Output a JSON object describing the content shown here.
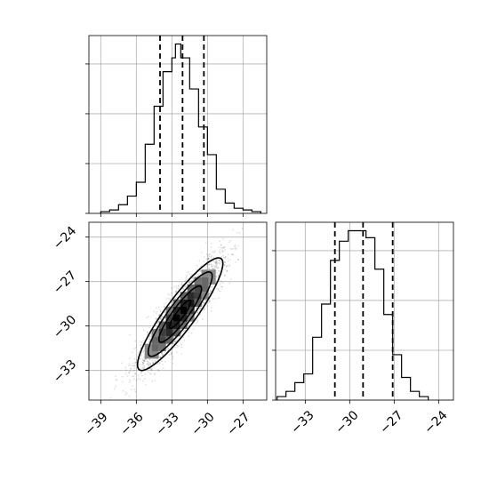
{
  "chart_data": {
    "type": "corner",
    "panels": [
      {
        "id": "hist_x",
        "type": "histogram",
        "xlim": [
          -40,
          -25
        ],
        "bin_edges": [
          -39,
          -38.25,
          -37.5,
          -36.75,
          -36,
          -35.25,
          -34.5,
          -33.75,
          -33,
          -32.7,
          -32.25,
          -31.5,
          -30.75,
          -30,
          -29.25,
          -28.5,
          -27.75,
          -27,
          -26.25,
          -25.5
        ],
        "counts": [
          1,
          2,
          5,
          10,
          18,
          40,
          62,
          82,
          90,
          98,
          90,
          72,
          50,
          34,
          14,
          6,
          3,
          2,
          1
        ],
        "quantiles": [
          -34.0,
          -32.1,
          -30.3
        ],
        "yticks_count": 4,
        "xtick_labels": []
      },
      {
        "id": "hist_y",
        "type": "histogram",
        "xlim": [
          -35,
          -23
        ],
        "bin_edges": [
          -34.9,
          -34.3,
          -33.7,
          -33.1,
          -32.5,
          -31.9,
          -31.3,
          -30.7,
          -30.1,
          -29.5,
          -28.9,
          -28.3,
          -27.7,
          -27.1,
          -26.5,
          -25.9,
          -25.3,
          -24.7
        ],
        "counts": [
          2,
          5,
          10,
          15,
          36,
          55,
          80,
          91,
          97,
          97,
          93,
          75,
          49,
          26,
          13,
          5,
          2
        ],
        "quantiles": [
          -31.0,
          -29.1,
          -27.1
        ],
        "yticks_count": 4,
        "xticks": [
          -33,
          -30,
          -27,
          -24
        ],
        "xtick_labels": [
          "−33",
          "−30",
          "−27",
          "−24"
        ]
      },
      {
        "id": "scatter_xy",
        "type": "density-contour",
        "xlim": [
          -40,
          -25
        ],
        "ylim": [
          -35,
          -23
        ],
        "xticks": [
          -39,
          -36,
          -33,
          -30,
          -27
        ],
        "xtick_labels": [
          "−39",
          "−36",
          "−33",
          "−30",
          "−27"
        ],
        "yticks": [
          -24,
          -27,
          -30,
          -33
        ],
        "ytick_labels": [
          "−24",
          "−27",
          "−30",
          "−33"
        ],
        "center": [
          -32.3,
          -29.2
        ],
        "sigma": [
          1.8,
          1.9
        ],
        "correlation": 0.9,
        "point_count": 2500,
        "contour_levels_sigma": [
          0.5,
          1.0,
          1.5,
          2.0
        ]
      }
    ]
  }
}
